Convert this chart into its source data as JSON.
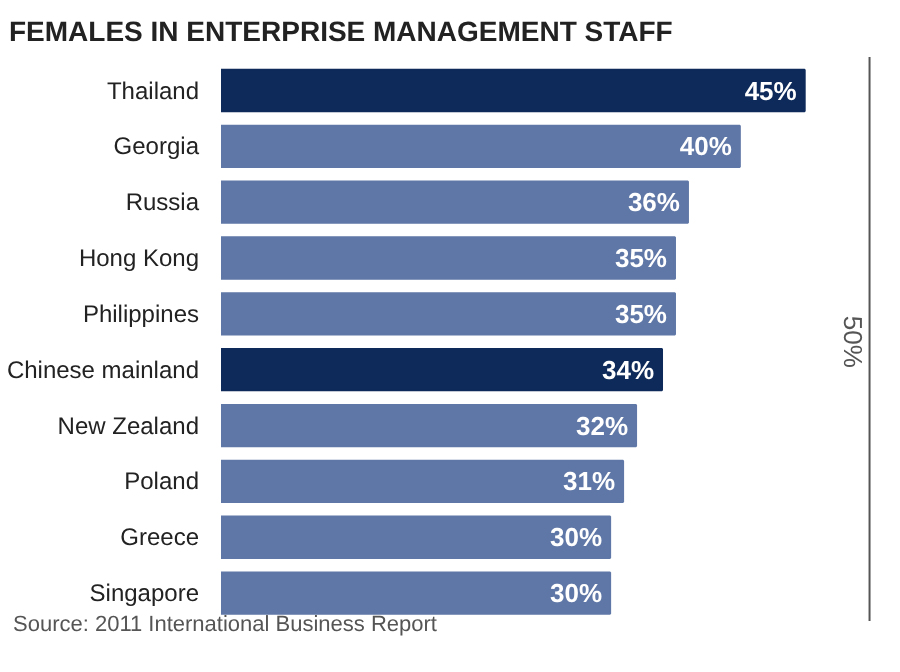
{
  "chart_data": {
    "type": "bar",
    "orientation": "horizontal",
    "title": "FEMALES IN ENTERPRISE MANAGEMENT STAFF",
    "categories": [
      "Thailand",
      "Georgia",
      "Russia",
      "Hong Kong",
      "Philippines",
      "Chinese mainland",
      "New Zealand",
      "Poland",
      "Greece",
      "Singapore"
    ],
    "values": [
      45,
      40,
      36,
      35,
      35,
      34,
      32,
      31,
      30,
      30
    ],
    "colors": [
      "#0d2a5a",
      "#5f77a6",
      "#5f77a6",
      "#5f77a6",
      "#5f77a6",
      "#0d2a5a",
      "#5f77a6",
      "#5f77a6",
      "#5f77a6",
      "#5f77a6"
    ],
    "value_labels": [
      "45%",
      "40%",
      "36%",
      "35%",
      "35%",
      "34%",
      "32%",
      "31%",
      "30%",
      "30%"
    ],
    "ref_lines": [
      {
        "axis": "x",
        "value": 50,
        "label": "50%",
        "color": "#555555"
      }
    ],
    "annotations": [
      "Source: 2011 International Business Report"
    ],
    "grid": false,
    "legend": false
  }
}
